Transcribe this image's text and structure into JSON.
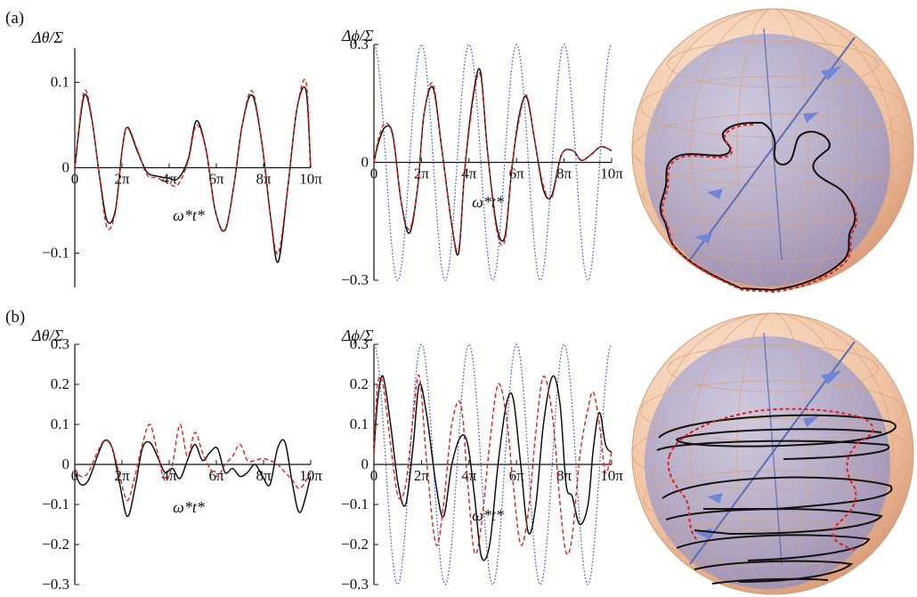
{
  "panel_labels": [
    "(a)",
    "(b)"
  ],
  "legend_colors": {
    "computed": "#111111",
    "approx": "#e0201a",
    "forcing": "#3a4fd6"
  },
  "sphere_colors": {
    "shell": "#f2c8a8",
    "inner": "#a9a9d6",
    "axis": "#5a6fb8"
  },
  "chart_data": [
    {
      "type": "line",
      "panel": "(a)",
      "ylabel": "Δθ/Σ",
      "xlabel": "ω*t*",
      "xlim": [
        0,
        31.4159
      ],
      "ylim": [
        -0.14,
        0.14
      ],
      "xticks": [
        0,
        6.2832,
        12.5664,
        18.8496,
        25.1327,
        31.4159
      ],
      "xticklabels": [
        "0",
        "2π",
        "4π",
        "6π",
        "8π",
        "10π"
      ],
      "yticks": [
        -0.1,
        0,
        0.1
      ],
      "yticklabels": [
        "−0.1",
        "0",
        "0.1"
      ],
      "series": [
        {
          "color": "#111111",
          "style": "solid",
          "x": [
            0,
            1.2,
            2.2,
            3.3,
            4.3,
            5.4,
            6.3,
            7.0,
            8.3,
            9.6,
            11.0,
            12.4,
            13.7,
            15.1,
            16.2,
            17.5,
            18.7,
            20.0,
            21.2,
            22.3,
            23.6,
            24.9,
            26.1,
            27.1,
            28.4,
            29.6,
            30.8,
            31.4
          ],
          "y": [
            0,
            0.083,
            0.06,
            -0.01,
            -0.062,
            -0.05,
            0.02,
            0.047,
            0.02,
            -0.005,
            -0.01,
            -0.012,
            -0.013,
            0.01,
            0.055,
            0.02,
            -0.05,
            -0.073,
            -0.02,
            0.05,
            0.085,
            0.03,
            -0.06,
            -0.11,
            -0.02,
            0.07,
            0.09,
            0
          ]
        },
        {
          "color": "#e0201a",
          "style": "dashed",
          "x": [
            0,
            1.2,
            2.2,
            3.3,
            4.3,
            5.4,
            6.3,
            7.0,
            8.3,
            9.6,
            11.0,
            12.4,
            13.7,
            15.1,
            16.2,
            17.5,
            18.7,
            20.0,
            21.2,
            22.3,
            23.6,
            24.9,
            26.1,
            27.1,
            28.4,
            29.6,
            30.8,
            31.4
          ],
          "y": [
            0,
            0.088,
            0.062,
            -0.012,
            -0.07,
            -0.052,
            0.02,
            0.048,
            0.022,
            -0.008,
            -0.012,
            -0.018,
            -0.02,
            0.008,
            0.05,
            0.02,
            -0.05,
            -0.074,
            -0.02,
            0.05,
            0.09,
            0.03,
            -0.06,
            -0.1,
            -0.02,
            0.07,
            0.1,
            0
          ]
        }
      ]
    },
    {
      "type": "line",
      "panel": "(a)",
      "ylabel": "Δϕ/Σ",
      "xlabel": "ω*t*",
      "xlim": [
        0,
        31.4159
      ],
      "ylim": [
        -0.3,
        0.3
      ],
      "xticks": [
        0,
        6.2832,
        12.5664,
        18.8496,
        25.1327,
        31.4159
      ],
      "xticklabels": [
        "0",
        "2π",
        "4π",
        "6π",
        "8π",
        "10π"
      ],
      "yticks": [
        -0.3,
        0,
        0.3
      ],
      "yticklabels": [
        "−0.3",
        "0",
        "0.3"
      ],
      "series": [
        {
          "color": "#3a4fd6",
          "style": "dotted",
          "function": "0.3*cos(x)"
        },
        {
          "color": "#111111",
          "style": "solid",
          "x": [
            0,
            0.6,
            1.5,
            2.5,
            3.6,
            4.7,
            5.8,
            6.6,
            7.8,
            9.0,
            10.3,
            11.2,
            12.0,
            13.2,
            14.1,
            15.0,
            16.2,
            17.3,
            18.2,
            19.2,
            20.2,
            21.3,
            22.4,
            23.5,
            24.8,
            26.3,
            27.4,
            28.7,
            30.0,
            31.4
          ],
          "y": [
            0,
            0.05,
            0.09,
            0.07,
            -0.1,
            -0.18,
            -0.06,
            0.12,
            0.19,
            0.03,
            -0.16,
            -0.23,
            -0.02,
            0.18,
            0.23,
            0.03,
            -0.16,
            -0.19,
            -0.02,
            0.12,
            0.165,
            0.05,
            -0.07,
            -0.085,
            0.02,
            0.03,
            0.005,
            0.02,
            0.04,
            0.03
          ]
        },
        {
          "color": "#e0201a",
          "style": "dashed",
          "x": [
            0,
            0.6,
            1.5,
            2.5,
            3.6,
            4.7,
            5.8,
            6.6,
            7.8,
            9.0,
            10.3,
            11.2,
            12.0,
            13.2,
            14.1,
            15.0,
            16.2,
            17.3,
            18.2,
            19.2,
            20.2,
            21.3,
            22.4,
            23.5,
            24.8,
            26.3,
            27.4,
            28.7,
            30.0,
            31.4
          ],
          "y": [
            0,
            0.06,
            0.1,
            0.065,
            -0.1,
            -0.17,
            -0.06,
            0.12,
            0.2,
            0.03,
            -0.16,
            -0.22,
            -0.02,
            0.17,
            0.22,
            0.03,
            -0.17,
            -0.2,
            -0.02,
            0.11,
            0.17,
            0.05,
            -0.06,
            -0.09,
            0.02,
            0.03,
            0.005,
            0.02,
            0.04,
            0.03
          ]
        }
      ]
    },
    {
      "type": "line",
      "panel": "(b)",
      "ylabel": "Δθ/Σ",
      "xlabel": "ω*t*",
      "xlim": [
        0,
        31.4159
      ],
      "ylim": [
        -0.3,
        0.3
      ],
      "xticks": [
        0,
        6.2832,
        12.5664,
        18.8496,
        25.1327,
        31.4159
      ],
      "xticklabels": [
        "0",
        "2π",
        "4π",
        "6π",
        "8π",
        "10π"
      ],
      "yticks": [
        -0.3,
        -0.2,
        -0.1,
        0,
        0.1,
        0.2,
        0.3
      ],
      "yticklabels": [
        "−0.3",
        "−0.2",
        "−0.1",
        "0",
        "0.1",
        "0.2",
        "0.3"
      ],
      "series": [
        {
          "color": "#111111",
          "style": "solid",
          "x": [
            0,
            0.8,
            1.8,
            3.0,
            4.0,
            5.0,
            6.0,
            7.0,
            8.0,
            9.0,
            10.0,
            11.0,
            12.0,
            13.0,
            14.0,
            15.0,
            16.0,
            17.0,
            18.0,
            19.0,
            20.0,
            21.0,
            22.0,
            23.0,
            24.0,
            25.0,
            26.0,
            27.0,
            28.0,
            29.0,
            30.0,
            31.4
          ],
          "y": [
            -0.02,
            -0.05,
            -0.04,
            0.02,
            0.06,
            0.04,
            -0.05,
            -0.13,
            -0.06,
            0.04,
            0.055,
            0.02,
            -0.02,
            -0.01,
            -0.035,
            0.01,
            0.05,
            0.01,
            0.03,
            0.04,
            -0.02,
            -0.01,
            -0.03,
            -0.02,
            0.0,
            -0.03,
            -0.05,
            0.04,
            0.055,
            -0.05,
            -0.12,
            -0.03
          ]
        },
        {
          "color": "#e0201a",
          "style": "dashed",
          "x": [
            0,
            0.8,
            1.8,
            3.0,
            4.0,
            5.0,
            6.0,
            7.0,
            8.0,
            9.0,
            10.0,
            11.0,
            12.0,
            13.0,
            14.0,
            15.0,
            16.0,
            17.0,
            18.0,
            19.0,
            20.0,
            21.0,
            22.0,
            23.0,
            24.0,
            25.0,
            26.0,
            27.0,
            28.0,
            29.0,
            30.0,
            31.4
          ],
          "y": [
            -0.01,
            -0.03,
            -0.02,
            0.03,
            0.06,
            0.04,
            -0.03,
            -0.09,
            -0.03,
            0.05,
            0.1,
            0.03,
            -0.04,
            0.0,
            0.1,
            0.02,
            0.08,
            0.03,
            -0.01,
            -0.03,
            0.0,
            0.02,
            0.05,
            0.01,
            0.01,
            0.015,
            0.01,
            0.0,
            -0.02,
            -0.04,
            -0.06,
            -0.02
          ]
        }
      ]
    },
    {
      "type": "line",
      "panel": "(b)",
      "ylabel": "Δϕ/Σ",
      "xlabel": "ω*t*",
      "xlim": [
        0,
        31.4159
      ],
      "ylim": [
        -0.3,
        0.3
      ],
      "xticks": [
        0,
        6.2832,
        12.5664,
        18.8496,
        25.1327,
        31.4159
      ],
      "xticklabels": [
        "0",
        "2π",
        "4π",
        "6π",
        "8π",
        "10π"
      ],
      "yticks": [
        -0.3,
        -0.2,
        -0.1,
        0,
        0.1,
        0.2,
        0.3
      ],
      "yticklabels": [
        "−0.3",
        "−0.2",
        "−0.1",
        "0",
        "0.1",
        "0.2",
        "0.3"
      ],
      "series": [
        {
          "color": "#3a4fd6",
          "style": "dotted",
          "function": "0.3*cos(x)"
        },
        {
          "color": "#111111",
          "style": "solid",
          "x": [
            0,
            0.5,
            1.2,
            2.2,
            3.2,
            4.2,
            5.2,
            6.0,
            7.0,
            8.2,
            9.2,
            10.3,
            11.5,
            12.4,
            13.3,
            14.2,
            15.3,
            16.4,
            17.5,
            18.4,
            19.4,
            20.4,
            21.4,
            22.4,
            23.6,
            24.6,
            25.4,
            26.2,
            27.2,
            28.3,
            29.0,
            29.8,
            30.6,
            31.4
          ],
          "y": [
            0.03,
            0.16,
            0.22,
            0.1,
            -0.05,
            -0.1,
            0.05,
            0.2,
            0.12,
            -0.05,
            -0.13,
            0.0,
            0.07,
            0.05,
            -0.08,
            -0.23,
            -0.2,
            0.0,
            0.15,
            0.165,
            0.0,
            -0.17,
            -0.1,
            0.1,
            0.22,
            0.15,
            -0.05,
            -0.08,
            -0.15,
            -0.1,
            0.04,
            0.13,
            0.05,
            0.03
          ]
        },
        {
          "color": "#e0201a",
          "style": "dashed",
          "x": [
            0,
            0.5,
            1.2,
            2.2,
            3.2,
            4.2,
            5.2,
            6.0,
            7.0,
            8.2,
            9.2,
            10.3,
            11.5,
            12.4,
            13.3,
            14.2,
            15.3,
            16.4,
            17.5,
            18.4,
            19.4,
            20.4,
            21.4,
            22.4,
            23.6,
            24.6,
            25.4,
            26.2,
            27.2,
            28.3,
            29.0,
            29.8,
            30.6,
            31.4
          ],
          "y": [
            0.03,
            0.2,
            0.2,
            0.05,
            -0.08,
            -0.05,
            0.12,
            0.22,
            0.0,
            -0.2,
            -0.1,
            0.1,
            0.15,
            -0.05,
            -0.22,
            -0.15,
            0.05,
            0.2,
            0.12,
            -0.05,
            -0.2,
            -0.12,
            0.08,
            0.22,
            0.12,
            -0.1,
            -0.22,
            -0.18,
            0.02,
            0.14,
            0.18,
            0.1,
            -0.02,
            0.03
          ]
        }
      ]
    }
  ]
}
